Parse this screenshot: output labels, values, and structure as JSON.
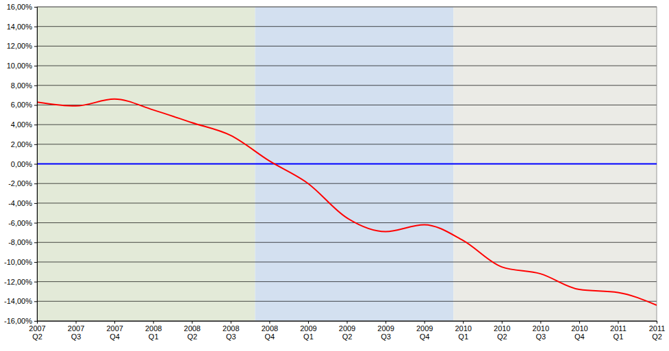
{
  "chart_data": {
    "type": "line",
    "categories": [
      "2007 Q2",
      "2007 Q3",
      "2007 Q4",
      "2008 Q1",
      "2008 Q2",
      "2008 Q3",
      "2008 Q4",
      "2009 Q1",
      "2009 Q2",
      "2009 Q3",
      "2009 Q4",
      "2010 Q1",
      "2010 Q2",
      "2010 Q3",
      "2010 Q4",
      "2011 Q1",
      "2011 Q2"
    ],
    "series": [
      {
        "color": "#ff0000",
        "values": [
          6.3,
          5.9,
          6.6,
          5.5,
          4.2,
          2.9,
          0.3,
          -2.0,
          -5.5,
          -6.9,
          -6.2,
          -7.8,
          -10.5,
          -11.2,
          -12.8,
          -13.1,
          -14.4
        ]
      },
      {
        "color": "#0000ff",
        "values": [
          0,
          0,
          0,
          0,
          0,
          0,
          0,
          0,
          0,
          0,
          0,
          0,
          0,
          0,
          0,
          0,
          0
        ]
      }
    ],
    "ylim": [
      -16,
      16
    ],
    "yticks": [
      {
        "value": -16,
        "label": "-16,00%"
      },
      {
        "value": -14,
        "label": "-14,00%"
      },
      {
        "value": -12,
        "label": "-12,00%"
      },
      {
        "value": -10,
        "label": "-10,00%"
      },
      {
        "value": -8,
        "label": "-8,00%"
      },
      {
        "value": -6,
        "label": "-6,00%"
      },
      {
        "value": -4,
        "label": "-4,00%"
      },
      {
        "value": -2,
        "label": "-2,00%"
      },
      {
        "value": 0,
        "label": "0,00%"
      },
      {
        "value": 2,
        "label": "2,00%"
      },
      {
        "value": 4,
        "label": "4,00%"
      },
      {
        "value": 6,
        "label": "6,00%"
      },
      {
        "value": 8,
        "label": "8,00%"
      },
      {
        "value": 10,
        "label": "10,00%"
      },
      {
        "value": 12,
        "label": "12,00%"
      },
      {
        "value": 14,
        "label": "14,00%"
      },
      {
        "value": 16,
        "label": "16,00%"
      }
    ],
    "grid": true
  }
}
